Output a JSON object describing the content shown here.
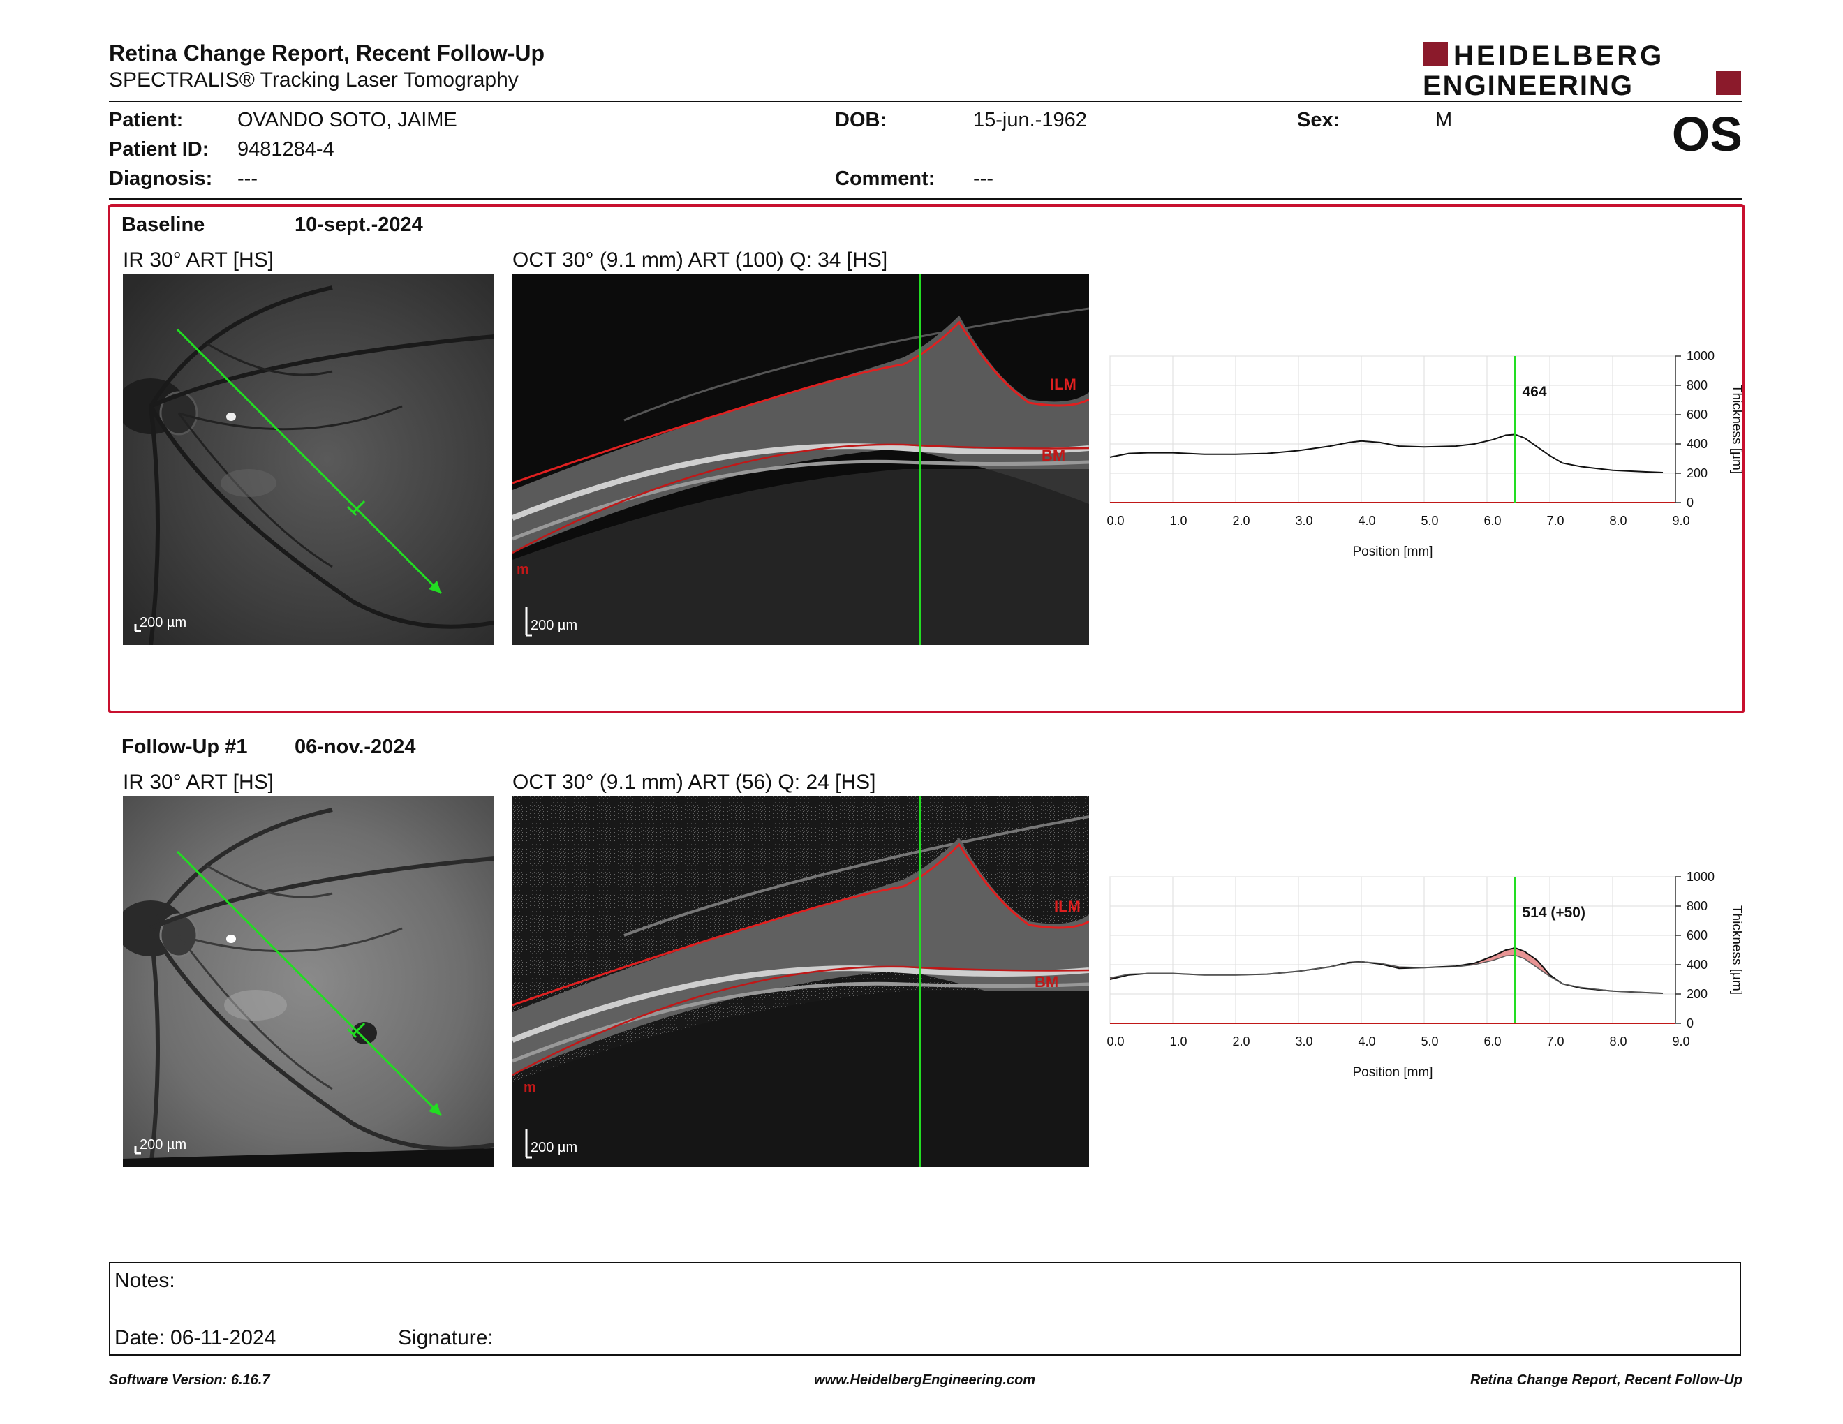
{
  "header": {
    "title": "Retina Change Report, Recent Follow-Up",
    "subtitle": "SPECTRALIS® Tracking Laser Tomography",
    "logo_line1": "HEIDELBERG",
    "logo_line2": "ENGINEERING",
    "logo_color": "#8b1a2b",
    "eye": "OS"
  },
  "patient": {
    "patient_label": "Patient:",
    "patient_value": "OVANDO SOTO, JAIME",
    "dob_label": "DOB:",
    "dob_value": "15-jun.-1962",
    "sex_label": "Sex:",
    "sex_value": "M",
    "id_label": "Patient ID:",
    "id_value": "9481284-4",
    "diagnosis_label": "Diagnosis:",
    "diagnosis_value": "---",
    "comment_label": "Comment:",
    "comment_value": "---"
  },
  "baseline": {
    "label": "Baseline",
    "date": "10-sept.-2024",
    "ir_title": "IR 30° ART [HS]",
    "oct_title": "OCT 30° (9.1 mm) ART (100) Q: 34 [HS]",
    "ir_scale": "200 µm",
    "oct_scale": "200 µm",
    "ilm": "ILM",
    "bm": "BM",
    "m": "m",
    "marker_value": "464"
  },
  "followup": {
    "label": "Follow-Up #1",
    "date": "06-nov.-2024",
    "ir_title": "IR 30° ART [HS]",
    "oct_title": "OCT 30° (9.1 mm) ART (56) Q: 24 [HS]",
    "ir_scale": "200 µm",
    "oct_scale": "200 µm",
    "ilm": "ILM",
    "bm": "BM",
    "m": "m",
    "marker_value": "514 (+50)"
  },
  "chart_data": [
    {
      "type": "line",
      "xlabel": "Position [mm]",
      "ylabel": "Thickness [µm]",
      "xlim": [
        0,
        9.0
      ],
      "ylim": [
        0,
        1000
      ],
      "x_ticks": [
        "0.0",
        "1.0",
        "2.0",
        "3.0",
        "4.0",
        "5.0",
        "6.0",
        "7.0",
        "8.0",
        "9.0"
      ],
      "y_ticks": [
        "0",
        "200",
        "400",
        "600",
        "800",
        "1000"
      ],
      "marker_x": 6.45,
      "marker_label": "464",
      "series": [
        {
          "x": [
            0,
            0.3,
            0.6,
            1.0,
            1.5,
            2.0,
            2.5,
            3.0,
            3.5,
            3.8,
            4.0,
            4.3,
            4.6,
            5.0,
            5.5,
            5.8,
            6.1,
            6.3,
            6.45,
            6.6,
            6.8,
            7.0,
            7.2,
            7.5,
            8.0,
            8.5,
            8.8
          ],
          "y": [
            310,
            335,
            340,
            340,
            330,
            330,
            335,
            355,
            385,
            410,
            420,
            410,
            385,
            380,
            385,
            400,
            430,
            460,
            464,
            440,
            380,
            320,
            270,
            245,
            220,
            210,
            205
          ]
        }
      ]
    },
    {
      "type": "line",
      "xlabel": "Position [mm]",
      "ylabel": "Thickness [µm]",
      "xlim": [
        0,
        9.0
      ],
      "ylim": [
        0,
        1000
      ],
      "x_ticks": [
        "0.0",
        "1.0",
        "2.0",
        "3.0",
        "4.0",
        "5.0",
        "6.0",
        "7.0",
        "8.0",
        "9.0"
      ],
      "y_ticks": [
        "0",
        "200",
        "400",
        "600",
        "800",
        "1000"
      ],
      "marker_x": 6.45,
      "marker_label": "514 (+50)",
      "series": [
        {
          "x": [
            0,
            0.3,
            0.6,
            1.0,
            1.5,
            2.0,
            2.5,
            3.0,
            3.5,
            3.8,
            4.0,
            4.3,
            4.6,
            5.0,
            5.5,
            5.8,
            6.1,
            6.3,
            6.45,
            6.6,
            6.8,
            7.0,
            7.2,
            7.5,
            8.0,
            8.5,
            8.8
          ],
          "y": [
            300,
            330,
            340,
            340,
            330,
            330,
            335,
            355,
            385,
            415,
            420,
            405,
            375,
            380,
            390,
            410,
            460,
            500,
            514,
            490,
            430,
            330,
            270,
            240,
            220,
            210,
            205
          ]
        },
        {
          "x": [
            0,
            0.3,
            0.6,
            1.0,
            1.5,
            2.0,
            2.5,
            3.0,
            3.5,
            3.8,
            4.0,
            4.3,
            4.6,
            5.0,
            5.5,
            5.8,
            6.1,
            6.3,
            6.45,
            6.6,
            6.8,
            7.0,
            7.2,
            7.5,
            8.0,
            8.5,
            8.8
          ],
          "y": [
            310,
            335,
            340,
            340,
            330,
            330,
            335,
            355,
            385,
            410,
            420,
            410,
            385,
            380,
            385,
            400,
            430,
            460,
            464,
            440,
            380,
            320,
            270,
            245,
            220,
            210,
            205
          ]
        }
      ]
    }
  ],
  "notes": {
    "notes_label": "Notes:",
    "date_label": "Date: 06-11-2024",
    "signature_label": "Signature:"
  },
  "footer": {
    "software": "Software Version: 6.16.7",
    "website": "www.HeidelbergEngineering.com",
    "report": "Retina Change Report, Recent Follow-Up"
  }
}
